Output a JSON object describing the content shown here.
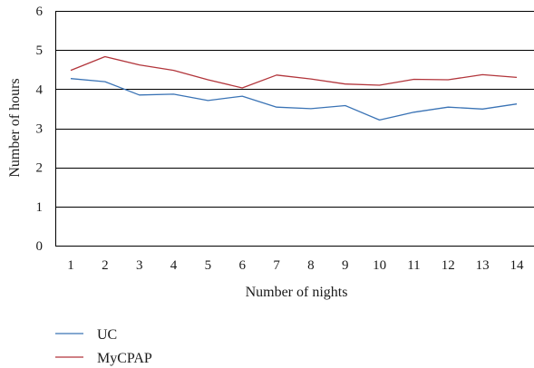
{
  "chart_data": {
    "type": "line",
    "xlabel": "Number of nights",
    "ylabel": "Number of hours",
    "x": [
      1,
      2,
      3,
      4,
      5,
      6,
      7,
      8,
      9,
      10,
      11,
      12,
      13,
      14
    ],
    "ylim": [
      0,
      6
    ],
    "yticks": [
      0,
      1,
      2,
      3,
      4,
      5,
      6
    ],
    "grid": "horizontal",
    "legend": "bottom-left",
    "series": [
      {
        "name": "UC",
        "color": "#3a73b5",
        "values": [
          4.27,
          4.19,
          3.85,
          3.87,
          3.71,
          3.82,
          3.54,
          3.5,
          3.58,
          3.21,
          3.41,
          3.54,
          3.49,
          3.62
        ]
      },
      {
        "name": "MyCPAP",
        "color": "#b2353b",
        "values": [
          4.48,
          4.83,
          4.62,
          4.48,
          4.24,
          4.03,
          4.36,
          4.26,
          4.13,
          4.1,
          4.25,
          4.24,
          4.37,
          4.3
        ]
      }
    ]
  }
}
